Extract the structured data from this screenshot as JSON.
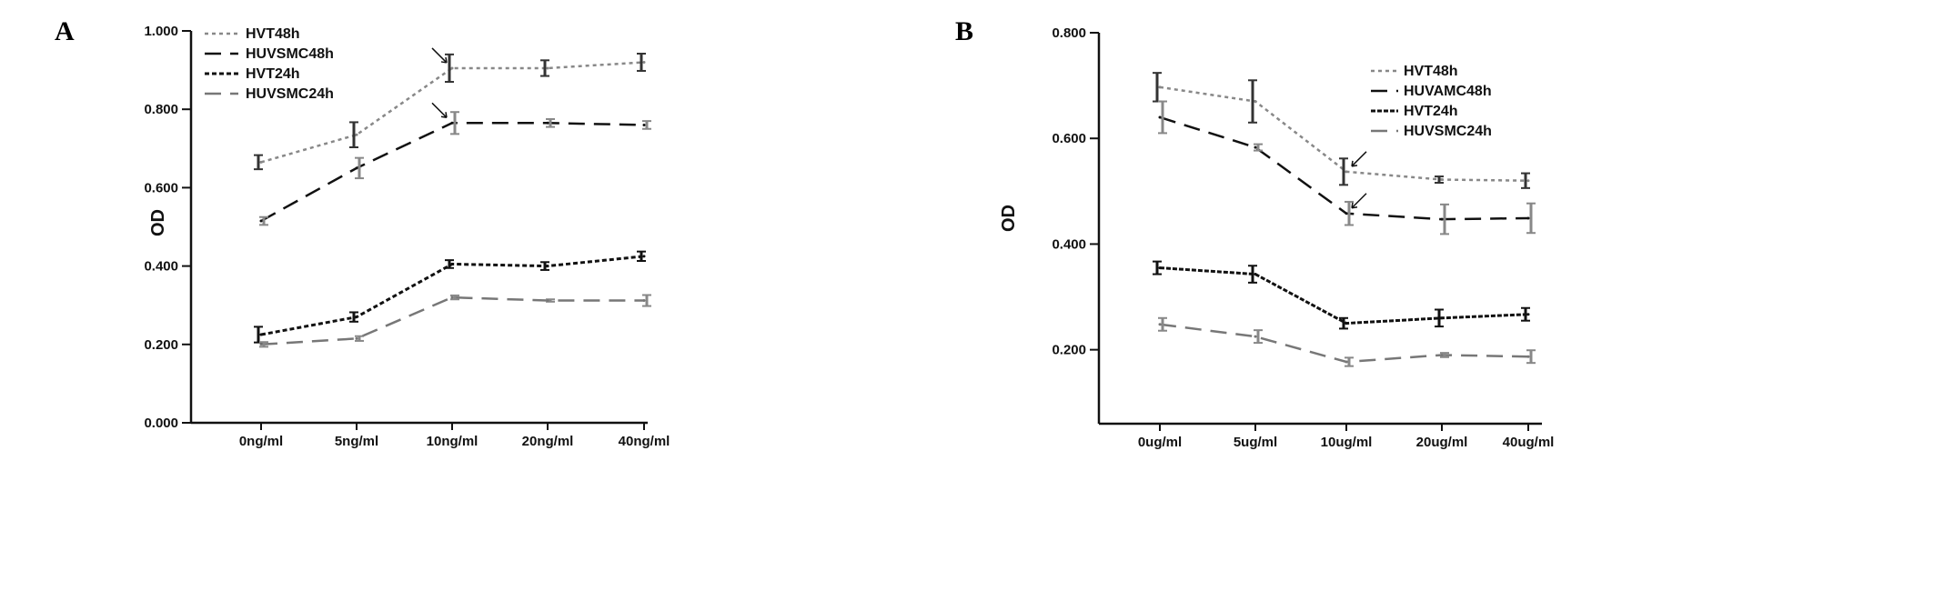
{
  "chart_data": [
    {
      "type": "line",
      "panel": "A",
      "ylabel": "OD",
      "xlabel": "",
      "ylim": [
        0,
        1
      ],
      "yticks": [
        "0.000",
        "0.200",
        "0.400",
        "0.600",
        "0.800",
        "1.000"
      ],
      "categories": [
        "0ng/ml",
        "5ng/ml",
        "10ng/ml",
        "20ng/ml",
        "40ng/ml"
      ],
      "legend_position": "top-left",
      "series": [
        {
          "name": "HVT48h",
          "values": [
            0.665,
            0.735,
            0.905,
            0.905,
            0.92
          ],
          "err": [
            0.018,
            0.032,
            0.035,
            0.02,
            0.022
          ],
          "color": "#888888",
          "dash": "4,4",
          "bar_color": "#333333"
        },
        {
          "name": "HUVSMC48h",
          "values": [
            0.515,
            0.65,
            0.765,
            0.765,
            0.76
          ],
          "err": [
            0.01,
            0.026,
            0.028,
            0.01,
            0.01
          ],
          "color": "#111111",
          "dash": "18,10",
          "bar_color": "#888888"
        },
        {
          "name": "HVT24h",
          "values": [
            0.225,
            0.27,
            0.405,
            0.4,
            0.425
          ],
          "err": [
            0.02,
            0.012,
            0.01,
            0.01,
            0.012
          ],
          "color": "#111111",
          "dash": "5,3",
          "bar_color": "#111111"
        },
        {
          "name": "HUVSMC24h",
          "values": [
            0.2,
            0.215,
            0.32,
            0.312,
            0.312
          ],
          "err": [
            0.006,
            0.006,
            0.005,
            0.003,
            0.014
          ],
          "color": "#777777",
          "dash": "18,10",
          "bar_color": "#888888"
        }
      ],
      "annotations": [
        "arrow at HVT48h 10ng/ml",
        "arrow at HUVSMC48h 10ng/ml"
      ]
    },
    {
      "type": "line",
      "panel": "B",
      "ylabel": "OD",
      "xlabel": "",
      "ylim": [
        0.06,
        0.8
      ],
      "yticks": [
        "0.200",
        "0.400",
        "0.600",
        "0.800"
      ],
      "categories": [
        "0ug/ml",
        "5ug/ml",
        "10ug/ml",
        "20ug/ml",
        "40ug/ml"
      ],
      "legend_position": "top-right",
      "series": [
        {
          "name": "HVT48h",
          "values": [
            0.697,
            0.67,
            0.537,
            0.522,
            0.52
          ],
          "err": [
            0.027,
            0.04,
            0.025,
            0.006,
            0.014
          ],
          "color": "#888888",
          "dash": "4,4",
          "bar_color": "#333333"
        },
        {
          "name": "HUVAMC48h",
          "values": [
            0.64,
            0.583,
            0.458,
            0.447,
            0.449
          ],
          "err": [
            0.03,
            0.006,
            0.022,
            0.028,
            0.028
          ],
          "color": "#111111",
          "dash": "18,10",
          "bar_color": "#888888"
        },
        {
          "name": "HVT24h",
          "values": [
            0.355,
            0.343,
            0.25,
            0.26,
            0.267
          ],
          "err": [
            0.012,
            0.016,
            0.01,
            0.016,
            0.012
          ],
          "color": "#111111",
          "dash": "5,2",
          "bar_color": "#111111"
        },
        {
          "name": "HUVSMC24h",
          "values": [
            0.248,
            0.225,
            0.177,
            0.19,
            0.187
          ],
          "err": [
            0.012,
            0.012,
            0.008,
            0.004,
            0.012
          ],
          "color": "#777777",
          "dash": "18,10",
          "bar_color": "#888888"
        }
      ],
      "annotations": [
        "arrow at HVT48h 10ug/ml",
        "arrow at HUVAMC48h 10ug/ml"
      ]
    }
  ]
}
